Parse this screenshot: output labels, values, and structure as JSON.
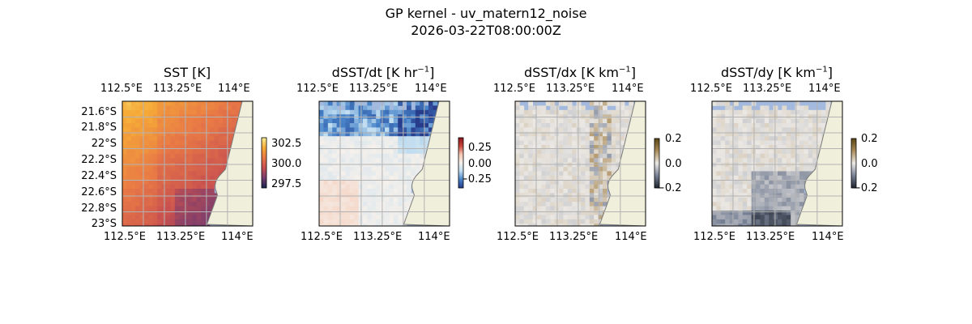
{
  "figure": {
    "title_line1": "GP kernel - uv_matern12_noise",
    "title_line2": "2026-03-22T08:00:00Z"
  },
  "colors": {
    "ocean": "#a3b9dd",
    "land": "#efefdb",
    "coast": "#7a7a7a",
    "grid": "#b3b3b3"
  },
  "chart_data": [
    {
      "type": "heatmap",
      "title": "SST [K]",
      "colormap": "thermal-orange",
      "xlim": [
        112.4,
        114.15
      ],
      "ylim": [
        -23.05,
        -21.5
      ],
      "xtick_labels": [
        "112.5°E",
        "113.25°E",
        "114°E"
      ],
      "ytick_labels": [
        "21.6°S",
        "21.8°S",
        "22°S",
        "22.2°S",
        "22.4°S",
        "22.6°S",
        "22.8°S",
        "23°S"
      ],
      "colorbar_ticks": [
        "302.5",
        "300.0",
        "297.5"
      ],
      "colorbar_range": [
        297.0,
        303.5
      ],
      "grid": true
    },
    {
      "type": "heatmap",
      "title": "dSST/dt [K hr",
      "title_suffix": "]",
      "title_sup": "−1",
      "colormap": "diverging-blue-red",
      "xtick_labels": [
        "112.5°E",
        "113.25°E",
        "114°E"
      ],
      "colorbar_ticks": [
        "0.25",
        "0.00",
        "−0.25"
      ],
      "colorbar_range": [
        -0.4,
        0.4
      ],
      "grid": true
    },
    {
      "type": "heatmap",
      "title": "dSST/dx [K km",
      "title_suffix": "]",
      "title_sup": "−1",
      "colormap": "diverging-brown-slate",
      "xtick_labels": [
        "112.5°E",
        "113.25°E",
        "114°E"
      ],
      "colorbar_ticks": [
        "0.2",
        "0.0",
        "−0.2"
      ],
      "colorbar_range": [
        -0.2,
        0.2
      ],
      "grid": true
    },
    {
      "type": "heatmap",
      "title": "dSST/dy [K km",
      "title_suffix": "]",
      "title_sup": "−1",
      "colormap": "diverging-brown-slate",
      "xtick_labels": [
        "112.5°E",
        "113.25°E",
        "114°E"
      ],
      "colorbar_ticks": [
        "0.2",
        "0.0",
        "−0.2"
      ],
      "colorbar_range": [
        -0.2,
        0.2
      ],
      "grid": true
    }
  ]
}
